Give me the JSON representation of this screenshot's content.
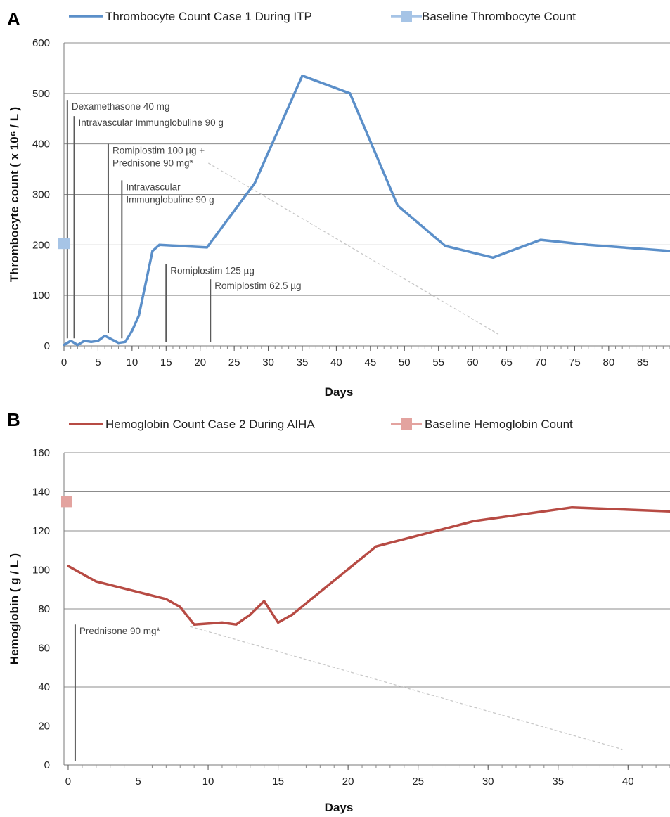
{
  "chart_data": [
    {
      "panel_letter": "A",
      "type": "line",
      "xlabel": "Days",
      "ylabel": "Thrombocyte count ( x 10⁶ / L )",
      "xlim": [
        0,
        89
      ],
      "ylim": [
        0,
        600
      ],
      "yticks": [
        0,
        100,
        200,
        300,
        400,
        500,
        600
      ],
      "xticks": [
        0,
        5,
        10,
        15,
        20,
        25,
        30,
        35,
        40,
        45,
        50,
        55,
        60,
        65,
        70,
        75,
        80,
        85
      ],
      "grid": true,
      "legend_position": "top",
      "series": [
        {
          "name": "Thrombocyte Count Case 1 During ITP",
          "color": "#5b8fc9",
          "points": [
            [
              0,
              2
            ],
            [
              1,
              10
            ],
            [
              2,
              2
            ],
            [
              3,
              10
            ],
            [
              4,
              8
            ],
            [
              5,
              10
            ],
            [
              6,
              20
            ],
            [
              7,
              13
            ],
            [
              8,
              6
            ],
            [
              9,
              8
            ],
            [
              10,
              30
            ],
            [
              11,
              60
            ],
            [
              13,
              188
            ],
            [
              14,
              200
            ],
            [
              21,
              195
            ],
            [
              28,
              322
            ],
            [
              35,
              535
            ],
            [
              42,
              500
            ],
            [
              49,
              278
            ],
            [
              56,
              198
            ],
            [
              63,
              175
            ],
            [
              70,
              210
            ],
            [
              77,
              200
            ],
            [
              84,
              193
            ],
            [
              89,
              188
            ]
          ]
        }
      ],
      "baseline": {
        "name": "Baseline Thrombocyte Count",
        "color": "#a6c4e6",
        "x": 0,
        "y": 203
      },
      "annotations": [
        {
          "label_lines": [
            "Dexamethasone 40 mg"
          ],
          "x": 0.5,
          "y_top": 487,
          "y_bottom": 15
        },
        {
          "label_lines": [
            "Intravascular Immunglobuline 90 g"
          ],
          "x": 1.5,
          "y_top": 455,
          "y_bottom": 15
        },
        {
          "label_lines": [
            "Romiplostim 100 µg +",
            "Prednisone 90 mg*"
          ],
          "x": 6.5,
          "y_top": 400,
          "y_bottom": 25
        },
        {
          "label_lines": [
            "Intravascular",
            "Immunglobuline  90 g"
          ],
          "x": 8.5,
          "y_top": 328,
          "y_bottom": 15
        },
        {
          "label_lines": [
            "Romiplostim 125 µg"
          ],
          "x": 15,
          "y_top": 162,
          "y_bottom": 8
        },
        {
          "label_lines": [
            "Romiplostim 62.5 µg"
          ],
          "x": 21.5,
          "y_top": 132,
          "y_bottom": 8
        }
      ],
      "dashed_line": {
        "from": [
          21.2,
          362
        ],
        "to": [
          63.8,
          23
        ]
      }
    },
    {
      "panel_letter": "B",
      "type": "line",
      "xlabel": "Days",
      "ylabel": "Hemoglobin  ( g / L )",
      "xlim": [
        -0.3,
        43
      ],
      "ylim": [
        0,
        160
      ],
      "yticks": [
        0,
        20,
        40,
        60,
        80,
        100,
        120,
        140,
        160
      ],
      "xticks": [
        0,
        5,
        10,
        15,
        20,
        25,
        30,
        35,
        40
      ],
      "grid": true,
      "legend_position": "top",
      "series": [
        {
          "name": "Hemoglobin Count Case 2 During AIHA",
          "color": "#b74b44",
          "points": [
            [
              0,
              102
            ],
            [
              2,
              94
            ],
            [
              7,
              85
            ],
            [
              8,
              81
            ],
            [
              9,
              72
            ],
            [
              11,
              73
            ],
            [
              12,
              72
            ],
            [
              13,
              77
            ],
            [
              14,
              84
            ],
            [
              15,
              73
            ],
            [
              16,
              77
            ],
            [
              22,
              112
            ],
            [
              29,
              125
            ],
            [
              36,
              132
            ],
            [
              43,
              130
            ]
          ]
        }
      ],
      "baseline": {
        "name": "Baseline Hemoglobin Count",
        "color": "#e3a39f",
        "x": -0.1,
        "y": 135
      },
      "annotations": [
        {
          "label_lines": [
            "Prednisone 90 mg*"
          ],
          "x": 0.5,
          "y_top": 72,
          "y_bottom": 2
        }
      ],
      "dashed_line": {
        "from": [
          8.7,
          71
        ],
        "to": [
          39.6,
          8
        ]
      }
    }
  ]
}
